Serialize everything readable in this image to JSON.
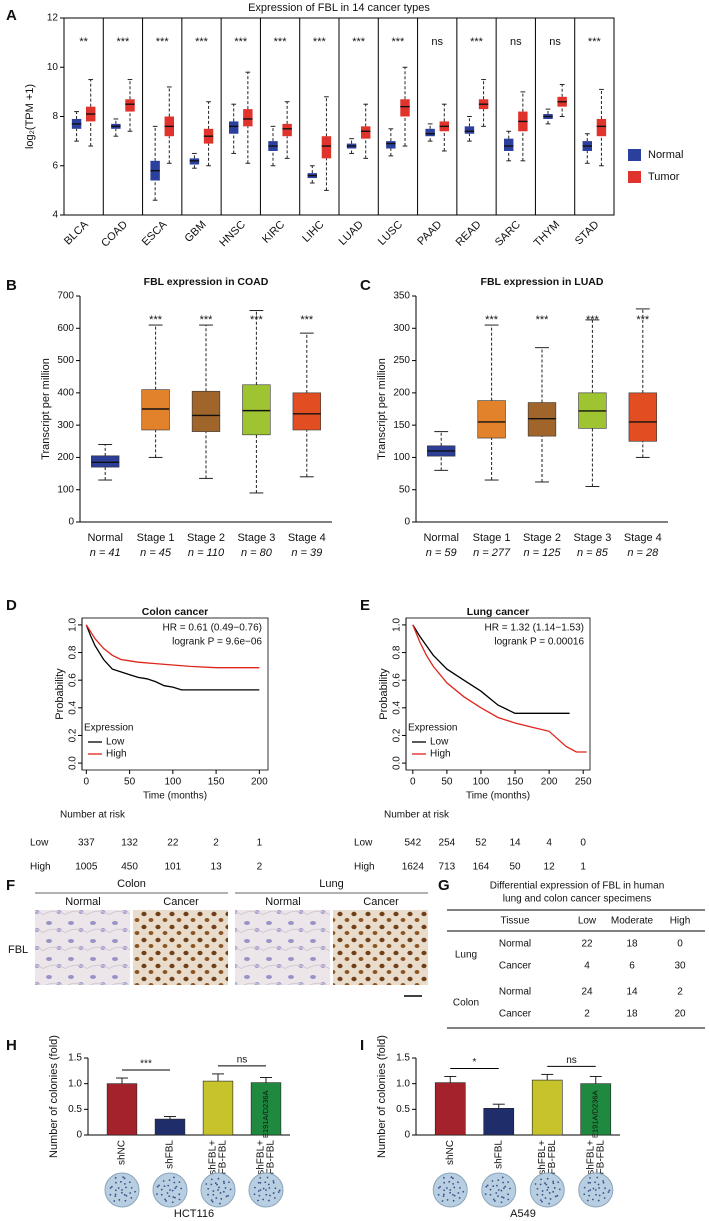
{
  "panel_labels": [
    "A",
    "B",
    "C",
    "D",
    "E",
    "F",
    "G",
    "H",
    "I"
  ],
  "chart_data": [
    {
      "type": "box",
      "title": "Expression of FBL in 14 cancer types",
      "y_label": "log₂(TPM +1)",
      "categories": [
        "BLCA",
        "COAD",
        "ESCA",
        "GBM",
        "HNSC",
        "KIRC",
        "LIHC",
        "LUAD",
        "LUSC",
        "PAAD",
        "READ",
        "SARC",
        "THYM",
        "STAD"
      ],
      "significance": [
        "**",
        "***",
        "***",
        "***",
        "***",
        "***",
        "***",
        "***",
        "***",
        "ns",
        "***",
        "ns",
        "ns",
        "***"
      ],
      "ylim": [
        4,
        12
      ],
      "yticks": [
        4,
        6,
        8,
        10,
        12
      ],
      "legend": "right",
      "series": [
        {
          "name": "Normal",
          "color": "#2b3f9c",
          "min": [
            7.0,
            7.2,
            4.6,
            5.9,
            6.5,
            6.0,
            5.3,
            6.5,
            6.4,
            7.0,
            7.0,
            6.2,
            7.7,
            6.1
          ],
          "q1": [
            7.5,
            7.5,
            5.4,
            6.05,
            7.3,
            6.6,
            5.5,
            6.7,
            6.7,
            7.2,
            7.3,
            6.6,
            7.9,
            6.6
          ],
          "median": [
            7.7,
            7.6,
            5.8,
            6.2,
            7.6,
            6.8,
            5.6,
            6.8,
            6.9,
            7.3,
            7.4,
            6.8,
            8.0,
            6.8
          ],
          "q3": [
            7.9,
            7.7,
            6.2,
            6.3,
            7.8,
            7.0,
            5.7,
            6.9,
            7.0,
            7.5,
            7.6,
            7.1,
            8.1,
            7.0
          ],
          "max": [
            8.2,
            7.9,
            7.6,
            6.5,
            8.5,
            7.6,
            6.0,
            7.1,
            7.5,
            7.7,
            8.0,
            7.4,
            8.3,
            7.3
          ]
        },
        {
          "name": "Tumor",
          "color": "#e0332b",
          "min": [
            6.8,
            7.4,
            6.1,
            6.0,
            6.1,
            6.3,
            5.0,
            6.3,
            6.8,
            6.6,
            7.6,
            6.2,
            8.0,
            6.0
          ],
          "q1": [
            7.8,
            8.2,
            7.2,
            6.9,
            7.6,
            7.2,
            6.3,
            7.1,
            8.0,
            7.4,
            8.3,
            7.4,
            8.4,
            7.2
          ],
          "median": [
            8.1,
            8.5,
            7.6,
            7.2,
            7.9,
            7.5,
            6.8,
            7.4,
            8.4,
            7.6,
            8.5,
            7.8,
            8.6,
            7.6
          ],
          "q3": [
            8.4,
            8.7,
            8.0,
            7.5,
            8.3,
            7.7,
            7.2,
            7.6,
            8.7,
            7.8,
            8.7,
            8.2,
            8.8,
            7.9
          ],
          "max": [
            9.5,
            9.5,
            9.2,
            8.6,
            9.8,
            8.6,
            8.8,
            8.5,
            10.0,
            8.5,
            9.5,
            9.0,
            9.3,
            9.1
          ]
        }
      ]
    },
    {
      "type": "box",
      "title": "FBL expression in COAD",
      "y_label": "Transcript per million",
      "categories": [
        "Normal",
        "Stage 1",
        "Stage 2",
        "Stage 3",
        "Stage 4"
      ],
      "sublabels": [
        "n = 41",
        "n = 45",
        "n = 110",
        "n = 80",
        "n = 39"
      ],
      "significance": [
        null,
        "***",
        "***",
        "***",
        "***"
      ],
      "ylim": [
        0,
        700
      ],
      "yticks": [
        0,
        100,
        200,
        300,
        400,
        500,
        600,
        700
      ],
      "series": [
        {
          "colors": [
            "#2c3e96",
            "#e2822a",
            "#a0652b",
            "#9ec531",
            "#e24d22"
          ],
          "min": [
            130,
            200,
            135,
            90,
            140
          ],
          "q1": [
            170,
            285,
            280,
            270,
            285
          ],
          "median": [
            185,
            350,
            330,
            345,
            335
          ],
          "q3": [
            205,
            410,
            405,
            425,
            400
          ],
          "max": [
            240,
            610,
            610,
            655,
            585
          ]
        }
      ]
    },
    {
      "type": "box",
      "title": "FBL expression in LUAD",
      "y_label": "Transcript per million",
      "categories": [
        "Normal",
        "Stage 1",
        "Stage 2",
        "Stage 3",
        "Stage 4"
      ],
      "sublabels": [
        "n = 59",
        "n = 277",
        "n = 125",
        "n = 85",
        "n = 28"
      ],
      "significance": [
        null,
        "***",
        "***",
        "***",
        "***"
      ],
      "ylim": [
        0,
        350
      ],
      "yticks": [
        0,
        50,
        100,
        150,
        200,
        250,
        300,
        350
      ],
      "series": [
        {
          "colors": [
            "#2c3e96",
            "#e2822a",
            "#a0652b",
            "#9ec531",
            "#e24d22"
          ],
          "min": [
            80,
            65,
            62,
            55,
            100
          ],
          "q1": [
            102,
            130,
            133,
            145,
            125
          ],
          "median": [
            110,
            155,
            160,
            172,
            155
          ],
          "q3": [
            118,
            188,
            185,
            200,
            200
          ],
          "max": [
            140,
            305,
            270,
            313,
            330
          ]
        }
      ]
    },
    {
      "type": "line",
      "title": "Colon cancer",
      "x_label": "Time (months)",
      "y_label": "Probability",
      "annotations": [
        "HR = 0.61 (0.49−0.76)",
        "logrank P = 9.6e−06"
      ],
      "legend_title": "Expression",
      "legend": "lower left",
      "xlim": [
        -5,
        210
      ],
      "xticks": [
        0,
        50,
        100,
        150,
        200
      ],
      "ylim": [
        -0.05,
        1.05
      ],
      "yticks": [
        {
          "value": 0,
          "label": "0.0"
        },
        0.2,
        0.4,
        0.6,
        0.8,
        {
          "value": 1,
          "label": "1.0"
        }
      ],
      "series": [
        {
          "name": "Low",
          "color": "#000000",
          "x": [
            0,
            5,
            10,
            20,
            30,
            40,
            50,
            60,
            70,
            80,
            90,
            100,
            110,
            120,
            200
          ],
          "values": [
            1,
            0.92,
            0.85,
            0.75,
            0.68,
            0.66,
            0.64,
            0.62,
            0.61,
            0.59,
            0.56,
            0.55,
            0.53,
            0.53,
            0.53
          ]
        },
        {
          "name": "High",
          "color": "#e0241b",
          "x": [
            0,
            5,
            10,
            20,
            30,
            40,
            50,
            60,
            80,
            100,
            120,
            150,
            200
          ],
          "values": [
            1,
            0.95,
            0.9,
            0.83,
            0.78,
            0.75,
            0.74,
            0.73,
            0.72,
            0.71,
            0.7,
            0.69,
            0.69
          ]
        }
      ],
      "risk_table": {
        "title": "Number at risk",
        "rows": [
          {
            "name": "Low",
            "color": "#000000",
            "values": [
              337,
              132,
              22,
              2,
              1
            ]
          },
          {
            "name": "High",
            "color": "#e0241b",
            "values": [
              1005,
              450,
              101,
              13,
              2
            ]
          }
        ]
      }
    },
    {
      "type": "line",
      "title": "Lung cancer",
      "x_label": "Time (months)",
      "y_label": "Probability",
      "annotations": [
        "HR = 1.32 (1.14−1.53)",
        "logrank P = 0.00016"
      ],
      "legend_title": "Expression",
      "legend": "lower left",
      "xlim": [
        -10,
        260
      ],
      "xticks": [
        0,
        50,
        100,
        150,
        200,
        250
      ],
      "ylim": [
        -0.05,
        1.05
      ],
      "yticks": [
        {
          "value": 0,
          "label": "0.0"
        },
        0.2,
        0.4,
        0.6,
        0.8,
        {
          "value": 1,
          "label": "1.0"
        }
      ],
      "series": [
        {
          "name": "Low",
          "color": "#000000",
          "x": [
            0,
            10,
            20,
            30,
            50,
            75,
            100,
            125,
            150,
            175,
            200,
            230
          ],
          "values": [
            1,
            0.92,
            0.85,
            0.78,
            0.68,
            0.6,
            0.52,
            0.42,
            0.36,
            0.36,
            0.36,
            0.36
          ]
        },
        {
          "name": "High",
          "color": "#e0241b",
          "x": [
            0,
            10,
            20,
            30,
            50,
            75,
            100,
            125,
            150,
            175,
            200,
            225,
            240,
            255
          ],
          "values": [
            1,
            0.88,
            0.78,
            0.7,
            0.58,
            0.48,
            0.4,
            0.33,
            0.29,
            0.26,
            0.23,
            0.12,
            0.08,
            0.08
          ]
        }
      ],
      "risk_table": {
        "title": "Number at risk",
        "rows": [
          {
            "name": "Low",
            "color": "#000000",
            "values": [
              542,
              254,
              52,
              14,
              4,
              0
            ]
          },
          {
            "name": "High",
            "color": "#e0241b",
            "values": [
              1624,
              713,
              164,
              50,
              12,
              1
            ]
          }
        ]
      }
    },
    {
      "type": "bar",
      "y_label": "Number of colonies (fold)",
      "cell_line": "HCT116",
      "categories": [
        [
          "shNC"
        ],
        [
          "shFBL"
        ],
        [
          "shFBL+",
          "SFB-FBL"
        ],
        [
          "shFBL+",
          "SFB-FBL"
        ]
      ],
      "category_superscripts": [
        null,
        null,
        null,
        "E191A/D236A"
      ],
      "values": [
        1.0,
        0.31,
        1.05,
        1.02
      ],
      "errors": [
        0.11,
        0.05,
        0.14,
        0.1
      ],
      "colors": [
        "#a3222b",
        "#1f2d6b",
        "#c7c32b",
        "#1f8a3f"
      ],
      "brackets": [
        {
          "label": "***"
        },
        {
          "label": "ns"
        }
      ],
      "ylim": [
        0,
        1.5
      ],
      "yticks": [
        0,
        0.5,
        {
          "value": 1,
          "label": "1.0"
        },
        1.5
      ]
    },
    {
      "type": "bar",
      "y_label": "Number of colonies (fold)",
      "cell_line": "A549",
      "categories": [
        [
          "shNC"
        ],
        [
          "shFBL"
        ],
        [
          "shFBL+",
          "SFB-FBL"
        ],
        [
          "shFBL+",
          "SFB-FBL"
        ]
      ],
      "category_superscripts": [
        null,
        null,
        null,
        "E191A/D236A"
      ],
      "values": [
        1.02,
        0.52,
        1.07,
        1.0
      ],
      "errors": [
        0.12,
        0.08,
        0.11,
        0.14
      ],
      "colors": [
        "#a3222b",
        "#1f2d6b",
        "#c7c32b",
        "#1f8a3f"
      ],
      "brackets": [
        {
          "label": "*"
        },
        {
          "label": "ns"
        }
      ],
      "ylim": [
        0,
        1.5
      ],
      "yticks": [
        0,
        0.5,
        {
          "value": 1,
          "label": "1.0"
        },
        1.5
      ]
    }
  ],
  "ihc": {
    "groups": [
      {
        "name": "Colon",
        "columns": [
          "Normal",
          "Cancer"
        ]
      },
      {
        "name": "Lung",
        "columns": [
          "Normal",
          "Cancer"
        ]
      }
    ],
    "row_label": "FBL"
  },
  "table": {
    "title": [
      "Differential expression of FBL in human",
      "lung and colon cancer specimens"
    ],
    "header": [
      "Tissue",
      "Low",
      "Moderate",
      "High"
    ],
    "groups": [
      {
        "name": "Lung",
        "rows": [
          [
            "Normal",
            22,
            18,
            0
          ],
          [
            "Cancer",
            4,
            6,
            30
          ]
        ]
      },
      {
        "name": "Colon",
        "rows": [
          [
            "Normal",
            24,
            14,
            2
          ],
          [
            "Cancer",
            2,
            18,
            20
          ]
        ]
      }
    ]
  }
}
